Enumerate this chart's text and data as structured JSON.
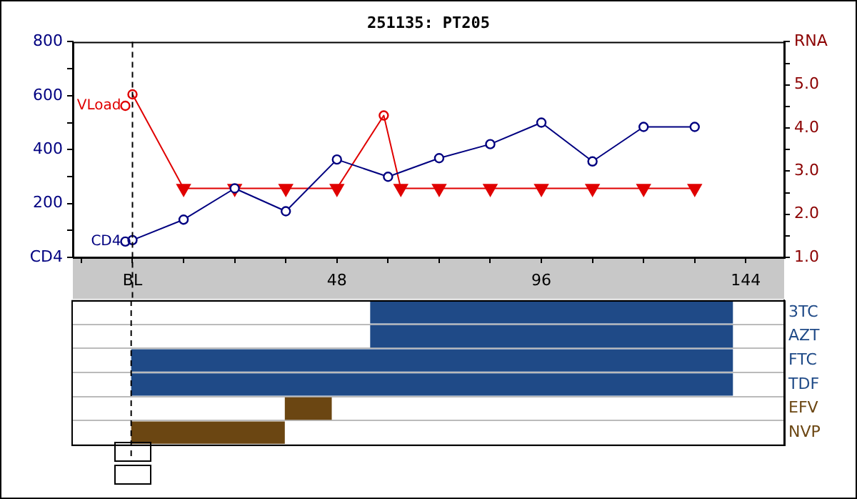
{
  "chart_data": [
    {
      "type": "line",
      "title": "251135: PT205",
      "xlim": [
        -14,
        153
      ],
      "xticks": [
        {
          "value": -12,
          "label": null
        },
        {
          "value": 0,
          "label": "BL"
        },
        {
          "value": 12,
          "label": null
        },
        {
          "value": 24,
          "label": null
        },
        {
          "value": 36,
          "label": null
        },
        48,
        {
          "value": 60,
          "label": null
        },
        {
          "value": 72,
          "label": null
        },
        {
          "value": 84,
          "label": null
        },
        96,
        {
          "value": 108,
          "label": null
        },
        {
          "value": 120,
          "label": null
        },
        {
          "value": 132,
          "label": null
        },
        144
      ],
      "ylim": [
        0,
        800
      ],
      "yticks": [
        {
          "value": 0,
          "label": "CD4"
        },
        {
          "value": 100,
          "label": null
        },
        200,
        {
          "value": 300,
          "label": null
        },
        400,
        {
          "value": 500,
          "label": null
        },
        600,
        {
          "value": 700,
          "label": null
        },
        800
      ],
      "y2lim": [
        1,
        6
      ],
      "y2ticks": [
        {
          "value": 1,
          "label": "1.0"
        },
        {
          "value": 1.5,
          "label": null
        },
        {
          "value": 2,
          "label": "2.0"
        },
        {
          "value": 2.5,
          "label": null
        },
        {
          "value": 3,
          "label": "3.0"
        },
        {
          "value": 3.5,
          "label": null
        },
        {
          "value": 4,
          "label": "4.0"
        },
        {
          "value": 4.5,
          "label": null
        },
        {
          "value": 5,
          "label": "5.0"
        },
        {
          "value": 5.5,
          "label": null
        },
        {
          "value": 6,
          "label": "RNA"
        }
      ],
      "ref_lines": [
        {
          "axis": "x",
          "value": 0,
          "color": "#000000",
          "line_style": "dashed"
        }
      ],
      "legend": "left",
      "series": [
        {
          "name": "CD4",
          "type": "line",
          "color": "#000080",
          "marker": "circle",
          "x": [
            0,
            12,
            24,
            36,
            48,
            60,
            72,
            84,
            96,
            108,
            120,
            132
          ],
          "values": [
            64,
            140,
            256,
            171,
            363,
            299,
            368,
            420,
            500,
            356,
            484,
            484
          ]
        },
        {
          "name": "VLoad",
          "type": "line",
          "axis": "y2",
          "color": "#e00000",
          "marker": "none",
          "x": [
            0,
            12,
            24,
            36,
            48,
            59,
            63,
            72,
            84,
            96,
            108,
            120,
            132
          ],
          "values": [
            4.78,
            2.6,
            2.6,
            2.6,
            2.6,
            4.29,
            2.6,
            2.6,
            2.6,
            2.6,
            2.6,
            2.6,
            2.6
          ]
        },
        {
          "type": "scatter",
          "axis": "y2",
          "color": "#e00000",
          "marker": "circle",
          "x": [
            0,
            59
          ],
          "values": [
            4.78,
            4.29
          ]
        },
        {
          "type": "scatter",
          "axis": "y2",
          "color": "#e00000",
          "marker": "triangle",
          "x": [
            12,
            24,
            36,
            48,
            63,
            72,
            84,
            96,
            108,
            120,
            132
          ],
          "values": [
            2.6,
            2.6,
            2.6,
            2.6,
            2.6,
            2.6,
            2.6,
            2.6,
            2.6,
            2.6,
            2.6
          ]
        }
      ]
    },
    {
      "type": "bar",
      "orientation": "horizontal",
      "categories": [
        "3TC",
        "AZT",
        "FTC",
        "TDF",
        "EFV",
        "NVP"
      ],
      "xlim": [
        -14,
        153
      ],
      "tick_labels": "y",
      "grid": "y",
      "values": [
        85,
        85,
        141,
        141,
        11,
        36
      ],
      "base": [
        56,
        56,
        0,
        0,
        36,
        0
      ],
      "colors": [
        "#1f4a87",
        "#1f4a87",
        "#1f4a87",
        "#1f4a87",
        "#6b4612",
        "#6b4612"
      ],
      "ref_lines": [
        {
          "axis": "x",
          "value": 0,
          "color": "#000000",
          "line_style": "dashed"
        }
      ]
    }
  ]
}
